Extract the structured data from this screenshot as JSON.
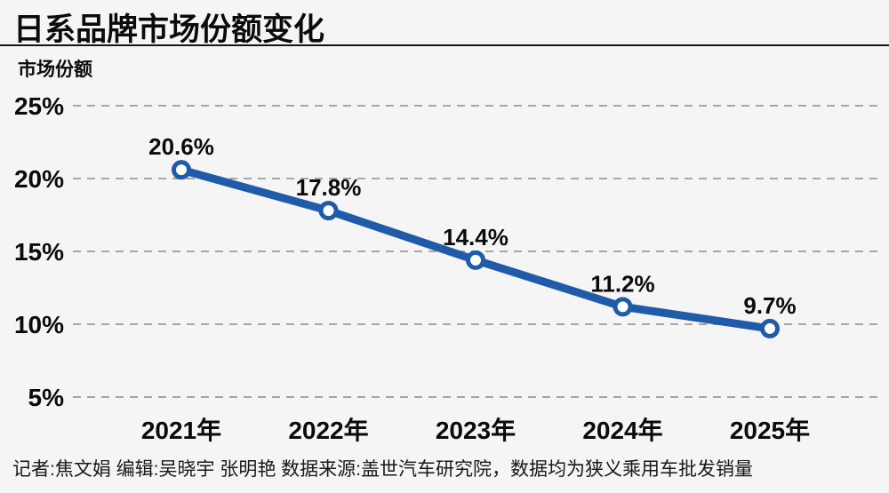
{
  "header": {
    "title": "日系品牌市场份额变化"
  },
  "chart_data": {
    "type": "line",
    "title": "日系品牌市场份额变化",
    "ylabel": "市场份额",
    "xlabel": "",
    "categories": [
      "2021年",
      "2022年",
      "2023年",
      "2024年",
      "2025年"
    ],
    "values": [
      20.6,
      17.8,
      14.4,
      11.2,
      9.7
    ],
    "data_labels": [
      "20.6%",
      "17.8%",
      "14.4%",
      "11.2%",
      "9.7%"
    ],
    "yticks": [
      25,
      20,
      15,
      10,
      5
    ],
    "ytick_labels": [
      "25%",
      "20%",
      "15%",
      "10%",
      "5%"
    ],
    "ylim": [
      5,
      25
    ],
    "grid": "horizontal-dashed",
    "legend": "none",
    "colors": {
      "line": "#1f5ba8",
      "marker_fill": "#ffffff",
      "grid": "#a6a6a6",
      "text": "#0b0b0b",
      "background": "#f5f5f6"
    },
    "marker": "open-circle"
  },
  "footer": {
    "credits": "记者:焦文娟  编辑:吴晓宇 张明艳  数据来源:盖世汽车研究院，数据均为狭义乘用车批发销量"
  }
}
